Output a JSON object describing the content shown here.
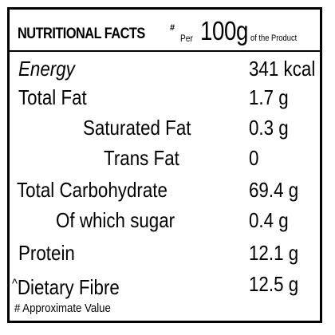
{
  "header": {
    "title": "NUTRITIONAL FACTS",
    "mark": "#",
    "per": "Per",
    "amount": "100g",
    "suffix": "of the Product"
  },
  "rows": [
    {
      "label": "Energy",
      "value": "341 kcal"
    },
    {
      "label": "Total Fat",
      "value": "1.7 g"
    },
    {
      "label": "Saturated Fat",
      "value": "0.3 g"
    },
    {
      "label": "Trans Fat",
      "value": "0"
    },
    {
      "label": "Total Carbohydrate",
      "value": "69.4 g"
    },
    {
      "label": "Of which sugar",
      "value": "0.4 g"
    },
    {
      "label": "Protein",
      "value": "12.1 g"
    },
    {
      "label": "Dietary Fibre",
      "caret": "^",
      "value": "12.5 g"
    }
  ],
  "footnote": "# Approximate Value"
}
